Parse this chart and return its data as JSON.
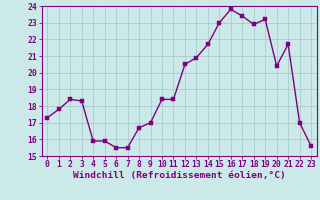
{
  "hours": [
    0,
    1,
    2,
    3,
    4,
    5,
    6,
    7,
    8,
    9,
    10,
    11,
    12,
    13,
    14,
    15,
    16,
    17,
    18,
    19,
    20,
    21,
    22,
    23
  ],
  "values": [
    17.3,
    17.8,
    18.4,
    18.3,
    15.9,
    15.9,
    15.5,
    15.5,
    16.7,
    17.0,
    18.4,
    18.4,
    20.5,
    20.9,
    21.7,
    23.0,
    23.8,
    23.4,
    22.9,
    23.2,
    20.4,
    21.7,
    17.0,
    15.6
  ],
  "ylim": [
    15,
    24
  ],
  "yticks": [
    15,
    16,
    17,
    18,
    19,
    20,
    21,
    22,
    23,
    24
  ],
  "xticks": [
    0,
    1,
    2,
    3,
    4,
    5,
    6,
    7,
    8,
    9,
    10,
    11,
    12,
    13,
    14,
    15,
    16,
    17,
    18,
    19,
    20,
    21,
    22,
    23
  ],
  "xlabel": "Windchill (Refroidissement éolien,°C)",
  "line_color": "#800080",
  "marker_color": "#800080",
  "bg_color": "#cce9e9",
  "grid_color": "#aacccc",
  "tick_label_fontsize": 5.8,
  "xlabel_fontsize": 6.8,
  "line_width": 1.0,
  "marker_size": 2.5
}
